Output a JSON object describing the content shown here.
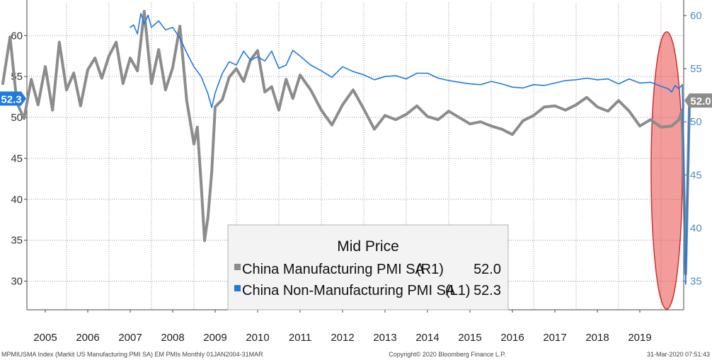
{
  "chart_data": {
    "type": "line",
    "legend": {
      "title": "Mid Price",
      "placement": "bottom-center"
    },
    "x_ticks": [
      "2005",
      "2006",
      "2007",
      "2008",
      "2009",
      "2010",
      "2011",
      "2012",
      "2013",
      "2014",
      "2015",
      "2016",
      "2017",
      "2018",
      "2019"
    ],
    "left_axis": {
      "ylim": [
        26.5,
        64
      ],
      "ticks": [
        "60",
        "55",
        "50",
        "45",
        "40",
        "35",
        "30"
      ]
    },
    "right_axis": {
      "ylim": [
        32.3,
        61.2
      ],
      "ticks": [
        "60",
        "55",
        "50",
        "45",
        "40",
        "35"
      ]
    },
    "grid": true,
    "series": [
      {
        "name": "China Manufacturing PMI SA",
        "axis_tag": "(R1)",
        "last_value": "52.0",
        "color": "#8c8c8c",
        "axis": "right",
        "x": [
          2004.0,
          2004.17,
          2004.33,
          2004.5,
          2004.67,
          2004.83,
          2005.0,
          2005.17,
          2005.33,
          2005.5,
          2005.67,
          2005.83,
          2006.0,
          2006.17,
          2006.33,
          2006.5,
          2006.67,
          2006.83,
          2007.0,
          2007.17,
          2007.33,
          2007.5,
          2007.67,
          2007.83,
          2008.0,
          2008.17,
          2008.33,
          2008.5,
          2008.58,
          2008.67,
          2008.75,
          2008.83,
          2008.92,
          2009.0,
          2009.17,
          2009.33,
          2009.5,
          2009.67,
          2009.83,
          2010.0,
          2010.17,
          2010.33,
          2010.5,
          2010.67,
          2010.83,
          2011.0,
          2011.25,
          2011.5,
          2011.75,
          2012.0,
          2012.25,
          2012.5,
          2012.75,
          2013.0,
          2013.25,
          2013.5,
          2013.75,
          2014.0,
          2014.25,
          2014.5,
          2014.75,
          2015.0,
          2015.25,
          2015.5,
          2015.75,
          2016.0,
          2016.25,
          2016.5,
          2016.75,
          2017.0,
          2017.25,
          2017.5,
          2017.75,
          2018.0,
          2018.25,
          2018.5,
          2018.75,
          2019.0,
          2019.25,
          2019.5,
          2019.75,
          2019.92,
          2020.0,
          2020.08,
          2020.17
        ],
        "y": [
          53.6,
          58.0,
          51.8,
          50.3,
          54.0,
          51.6,
          55.2,
          51.1,
          57.5,
          53.0,
          54.6,
          51.5,
          54.9,
          56.0,
          54.1,
          56.2,
          57.5,
          53.6,
          56.0,
          54.8,
          60.4,
          53.6,
          56.8,
          53.0,
          55.1,
          59.0,
          52.0,
          47.9,
          49.5,
          44.2,
          38.8,
          41.0,
          45.3,
          51.4,
          52.1,
          54.2,
          55.0,
          53.8,
          55.8,
          56.7,
          52.8,
          53.3,
          51.1,
          54.0,
          52.2,
          54.4,
          53.0,
          51.1,
          49.7,
          51.6,
          53.0,
          51.2,
          49.3,
          50.6,
          50.2,
          50.7,
          51.5,
          50.5,
          50.2,
          51.0,
          50.4,
          49.8,
          50.0,
          49.6,
          49.3,
          48.8,
          50.1,
          50.6,
          51.4,
          51.5,
          51.1,
          51.6,
          52.3,
          51.4,
          51.0,
          52.0,
          51.0,
          49.6,
          50.2,
          49.5,
          49.6,
          50.2,
          51.1,
          35.7,
          52.0
        ]
      },
      {
        "name": "China Non-Manufacturing PMI SA",
        "axis_tag": "(L1)",
        "last_value": "52.3",
        "color": "#1e7ae0",
        "axis": "left",
        "x": [
          2007.0,
          2007.08,
          2007.17,
          2007.25,
          2007.33,
          2007.42,
          2007.5,
          2007.67,
          2007.83,
          2008.0,
          2008.17,
          2008.33,
          2008.5,
          2008.67,
          2008.83,
          2008.92,
          2009.0,
          2009.17,
          2009.33,
          2009.5,
          2009.67,
          2009.83,
          2010.0,
          2010.17,
          2010.33,
          2010.5,
          2010.67,
          2010.83,
          2011.0,
          2011.25,
          2011.5,
          2011.75,
          2012.0,
          2012.25,
          2012.5,
          2012.75,
          2013.0,
          2013.25,
          2013.5,
          2013.75,
          2014.0,
          2014.25,
          2014.5,
          2014.75,
          2015.0,
          2015.25,
          2015.5,
          2015.75,
          2016.0,
          2016.25,
          2016.5,
          2016.75,
          2017.0,
          2017.25,
          2017.5,
          2017.75,
          2018.0,
          2018.25,
          2018.5,
          2018.75,
          2019.0,
          2019.25,
          2019.5,
          2019.67,
          2019.75,
          2019.83,
          2019.92,
          2020.0,
          2020.08,
          2020.17
        ],
        "y": [
          61.0,
          61.3,
          60.2,
          62.7,
          61.4,
          62.5,
          61.0,
          61.8,
          60.7,
          61.0,
          59.7,
          57.9,
          56.2,
          55.0,
          52.9,
          51.2,
          53.0,
          55.4,
          56.8,
          56.4,
          58.1,
          57.0,
          57.4,
          56.9,
          58.1,
          56.0,
          56.4,
          58.2,
          57.5,
          56.4,
          55.7,
          54.9,
          56.2,
          55.6,
          55.2,
          54.6,
          55.0,
          55.1,
          54.7,
          55.4,
          55.4,
          54.8,
          54.5,
          54.3,
          54.1,
          54.0,
          54.4,
          54.1,
          53.7,
          53.6,
          54.0,
          53.9,
          54.2,
          54.5,
          54.6,
          54.8,
          54.6,
          54.7,
          54.1,
          54.7,
          54.2,
          54.3,
          53.8,
          53.5,
          53.1,
          53.9,
          53.5,
          54.0,
          29.6,
          52.3
        ]
      }
    ]
  },
  "footer": {
    "left": "MPMIUSMA Index (Markit US Manufacturing PMI SA) EM PMIs  Monthly 01JAN2004-31MAR",
    "center": "Copyright© 2020 Bloomberg Finance L.P.",
    "right": "31-Mar-2020 07:51:43"
  },
  "highlight": {
    "color": "#e84a4a",
    "label": ""
  }
}
